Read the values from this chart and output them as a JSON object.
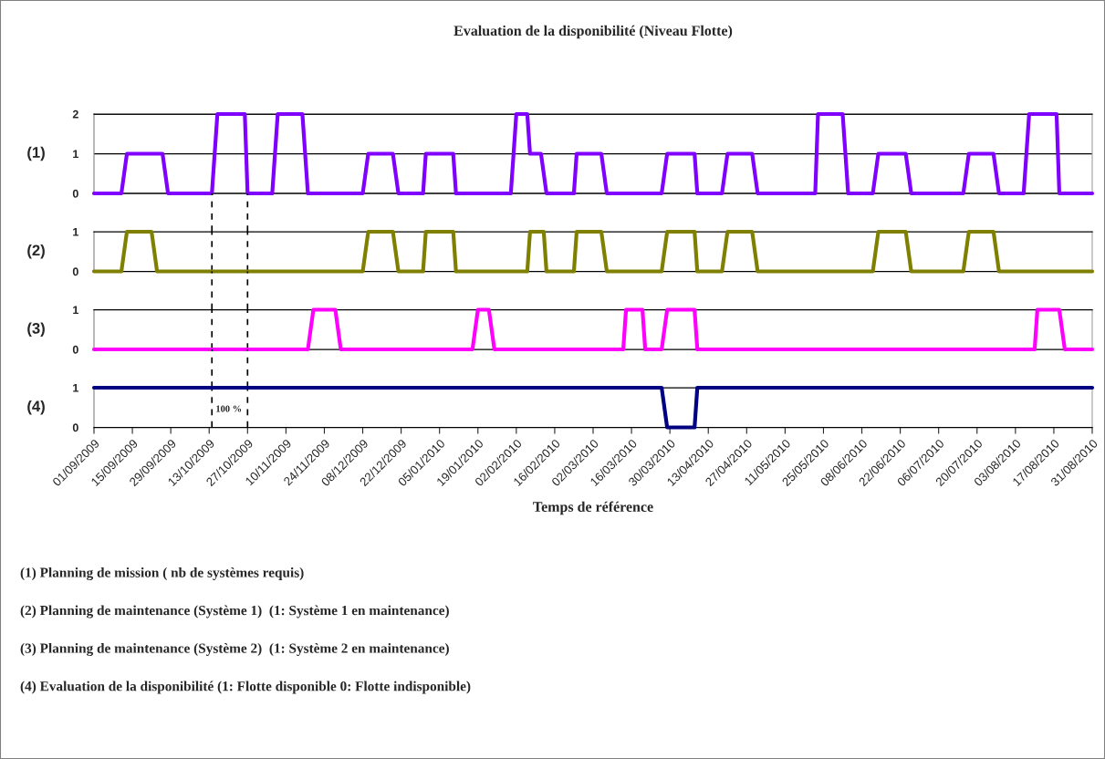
{
  "chart_data": [
    {
      "type": "line",
      "title": "Evaluation de la disponibilité (Niveau Flotte)",
      "ylabel": "(1)",
      "xlim": [
        "2009-09-01",
        "2010-08-31"
      ],
      "ylim": [
        0,
        2
      ],
      "yticks": [
        0,
        1,
        2
      ],
      "tick_labels": "y",
      "grid": "y",
      "series": [
        {
          "color": "#8000ff",
          "x": [
            "2009-09-01",
            "2009-09-11",
            "2009-09-13",
            "2009-09-26",
            "2009-09-28",
            "2009-10-14",
            "2009-10-16",
            "2009-10-26",
            "2009-10-27",
            "2009-11-05",
            "2009-11-07",
            "2009-11-16",
            "2009-11-18",
            "2009-12-08",
            "2009-12-10",
            "2009-12-19",
            "2009-12-21",
            "2009-12-30",
            "2009-12-31",
            "2010-01-10",
            "2010-01-11",
            "2010-01-31",
            "2010-02-02",
            "2010-02-06",
            "2010-02-07",
            "2010-02-11",
            "2010-02-13",
            "2010-02-23",
            "2010-02-24",
            "2010-03-05",
            "2010-03-07",
            "2010-03-27",
            "2010-03-29",
            "2010-04-08",
            "2010-04-09",
            "2010-04-18",
            "2010-04-20",
            "2010-04-29",
            "2010-05-01",
            "2010-05-22",
            "2010-05-23",
            "2010-06-01",
            "2010-06-03",
            "2010-06-12",
            "2010-06-14",
            "2010-06-24",
            "2010-06-26",
            "2010-07-15",
            "2010-07-17",
            "2010-07-26",
            "2010-07-28",
            "2010-08-06",
            "2010-08-08",
            "2010-08-18",
            "2010-08-19",
            "2010-08-31"
          ],
          "values": [
            0,
            0,
            1,
            1,
            0,
            0,
            2,
            2,
            0,
            0,
            2,
            2,
            0,
            0,
            1,
            1,
            0,
            0,
            1,
            1,
            0,
            0,
            2,
            2,
            1,
            1,
            0,
            0,
            1,
            1,
            0,
            0,
            1,
            1,
            0,
            0,
            1,
            1,
            0,
            0,
            2,
            2,
            0,
            0,
            1,
            1,
            0,
            0,
            1,
            1,
            0,
            0,
            2,
            2,
            0,
            0
          ]
        }
      ]
    },
    {
      "type": "line",
      "ylabel": "(2)",
      "xlim": [
        "2009-09-01",
        "2010-08-31"
      ],
      "ylim": [
        0,
        1
      ],
      "yticks": [
        0,
        1
      ],
      "tick_labels": "y",
      "ref_lines": [
        {
          "axis": "x",
          "value": "2009-10-14",
          "line_style": "dashed",
          "color": "#000000"
        },
        {
          "axis": "x",
          "value": "2009-10-27",
          "line_style": "dashed",
          "color": "#000000"
        }
      ],
      "series": [
        {
          "color": "#808000",
          "x": [
            "2009-09-01",
            "2009-09-11",
            "2009-09-13",
            "2009-09-22",
            "2009-09-24",
            "2009-12-08",
            "2009-12-10",
            "2009-12-19",
            "2009-12-21",
            "2009-12-30",
            "2009-12-31",
            "2010-01-10",
            "2010-01-11",
            "2010-02-06",
            "2010-02-07",
            "2010-02-12",
            "2010-02-13",
            "2010-02-23",
            "2010-02-24",
            "2010-03-05",
            "2010-03-07",
            "2010-03-27",
            "2010-03-29",
            "2010-04-08",
            "2010-04-09",
            "2010-04-18",
            "2010-04-20",
            "2010-04-29",
            "2010-05-01",
            "2010-06-12",
            "2010-06-14",
            "2010-06-24",
            "2010-06-26",
            "2010-07-15",
            "2010-07-17",
            "2010-07-26",
            "2010-07-28",
            "2010-08-31"
          ],
          "values": [
            0,
            0,
            1,
            1,
            0,
            0,
            1,
            1,
            0,
            0,
            1,
            1,
            0,
            0,
            1,
            1,
            0,
            0,
            1,
            1,
            0,
            0,
            1,
            1,
            0,
            0,
            1,
            1,
            0,
            0,
            1,
            1,
            0,
            0,
            1,
            1,
            0,
            0
          ]
        }
      ]
    },
    {
      "type": "line",
      "ylabel": "(3)",
      "xlim": [
        "2009-09-01",
        "2010-08-31"
      ],
      "ylim": [
        0,
        1
      ],
      "yticks": [
        0,
        1
      ],
      "tick_labels": "y",
      "ref_lines": [
        {
          "axis": "x",
          "value": "2009-10-14",
          "line_style": "dashed",
          "color": "#000000"
        },
        {
          "axis": "x",
          "value": "2009-10-27",
          "line_style": "dashed",
          "color": "#000000"
        }
      ],
      "series": [
        {
          "color": "#ff00ff",
          "x": [
            "2009-09-01",
            "2009-11-18",
            "2009-11-20",
            "2009-11-28",
            "2009-11-30",
            "2010-01-17",
            "2010-01-19",
            "2010-01-23",
            "2010-01-25",
            "2010-03-13",
            "2010-03-14",
            "2010-03-20",
            "2010-03-21",
            "2010-03-27",
            "2010-03-29",
            "2010-04-08",
            "2010-04-09",
            "2010-08-10",
            "2010-08-11",
            "2010-08-19",
            "2010-08-21",
            "2010-08-31"
          ],
          "values": [
            0,
            0,
            1,
            1,
            0,
            0,
            1,
            1,
            0,
            0,
            1,
            1,
            0,
            0,
            1,
            1,
            0,
            0,
            1,
            1,
            0,
            0
          ]
        }
      ]
    },
    {
      "type": "line",
      "ylabel": "(4)",
      "xlabel": "Temps de référence",
      "xlim": [
        "2009-09-01",
        "2010-08-31"
      ],
      "ylim": [
        0,
        1
      ],
      "yticks": [
        0,
        1
      ],
      "xticks": [
        {
          "value": "2009-09-01",
          "label": "01/09/2009"
        },
        {
          "value": "2009-09-15",
          "label": "15/09/2009"
        },
        {
          "value": "2009-09-29",
          "label": "29/09/2009"
        },
        {
          "value": "2009-10-13",
          "label": "13/10/2009"
        },
        {
          "value": "2009-10-27",
          "label": "27/10/2009"
        },
        {
          "value": "2009-11-10",
          "label": "10/11/2009"
        },
        {
          "value": "2009-11-24",
          "label": "24/11/2009"
        },
        {
          "value": "2009-12-08",
          "label": "08/12/2009"
        },
        {
          "value": "2009-12-22",
          "label": "22/12/2009"
        },
        {
          "value": "2010-01-05",
          "label": "05/01/2010"
        },
        {
          "value": "2010-01-19",
          "label": "19/01/2010"
        },
        {
          "value": "2010-02-02",
          "label": "02/02/2010"
        },
        {
          "value": "2010-02-16",
          "label": "16/02/2010"
        },
        {
          "value": "2010-03-02",
          "label": "02/03/2010"
        },
        {
          "value": "2010-03-16",
          "label": "16/03/2010"
        },
        {
          "value": "2010-03-30",
          "label": "30/03/2010"
        },
        {
          "value": "2010-04-13",
          "label": "13/04/2010"
        },
        {
          "value": "2010-04-27",
          "label": "27/04/2010"
        },
        {
          "value": "2010-05-11",
          "label": "11/05/2010"
        },
        {
          "value": "2010-05-25",
          "label": "25/05/2010"
        },
        {
          "value": "2010-06-08",
          "label": "08/06/2010"
        },
        {
          "value": "2010-06-22",
          "label": "22/06/2010"
        },
        {
          "value": "2010-07-06",
          "label": "06/07/2010"
        },
        {
          "value": "2010-07-20",
          "label": "20/07/2010"
        },
        {
          "value": "2010-08-03",
          "label": "03/08/2010"
        },
        {
          "value": "2010-08-17",
          "label": "17/08/2010"
        },
        {
          "value": "2010-08-31",
          "label": "31/08/2010"
        }
      ],
      "ref_lines": [
        {
          "axis": "x",
          "value": "2009-10-14",
          "line_style": "dashed",
          "color": "#000000",
          "label": "100 %"
        },
        {
          "axis": "x",
          "value": "2009-10-27",
          "line_style": "dashed",
          "color": "#000000"
        }
      ],
      "series": [
        {
          "color": "#000080",
          "x": [
            "2009-09-01",
            "2010-03-27",
            "2010-03-29",
            "2010-04-08",
            "2010-04-09",
            "2010-08-31"
          ],
          "values": [
            1,
            1,
            0,
            0,
            1,
            1
          ]
        }
      ],
      "annotations": [
        "(1) Planning de mission ( nb de systèmes requis)",
        "(2) Planning de maintenance (Système 1)  (1: Système 1 en maintenance)",
        "(3) Planning de maintenance (Système 2)  (1: Système 2 en maintenance)",
        "(4) Evaluation de la disponibilité (1: Flotte disponible 0: Flotte indisponible)"
      ]
    }
  ]
}
